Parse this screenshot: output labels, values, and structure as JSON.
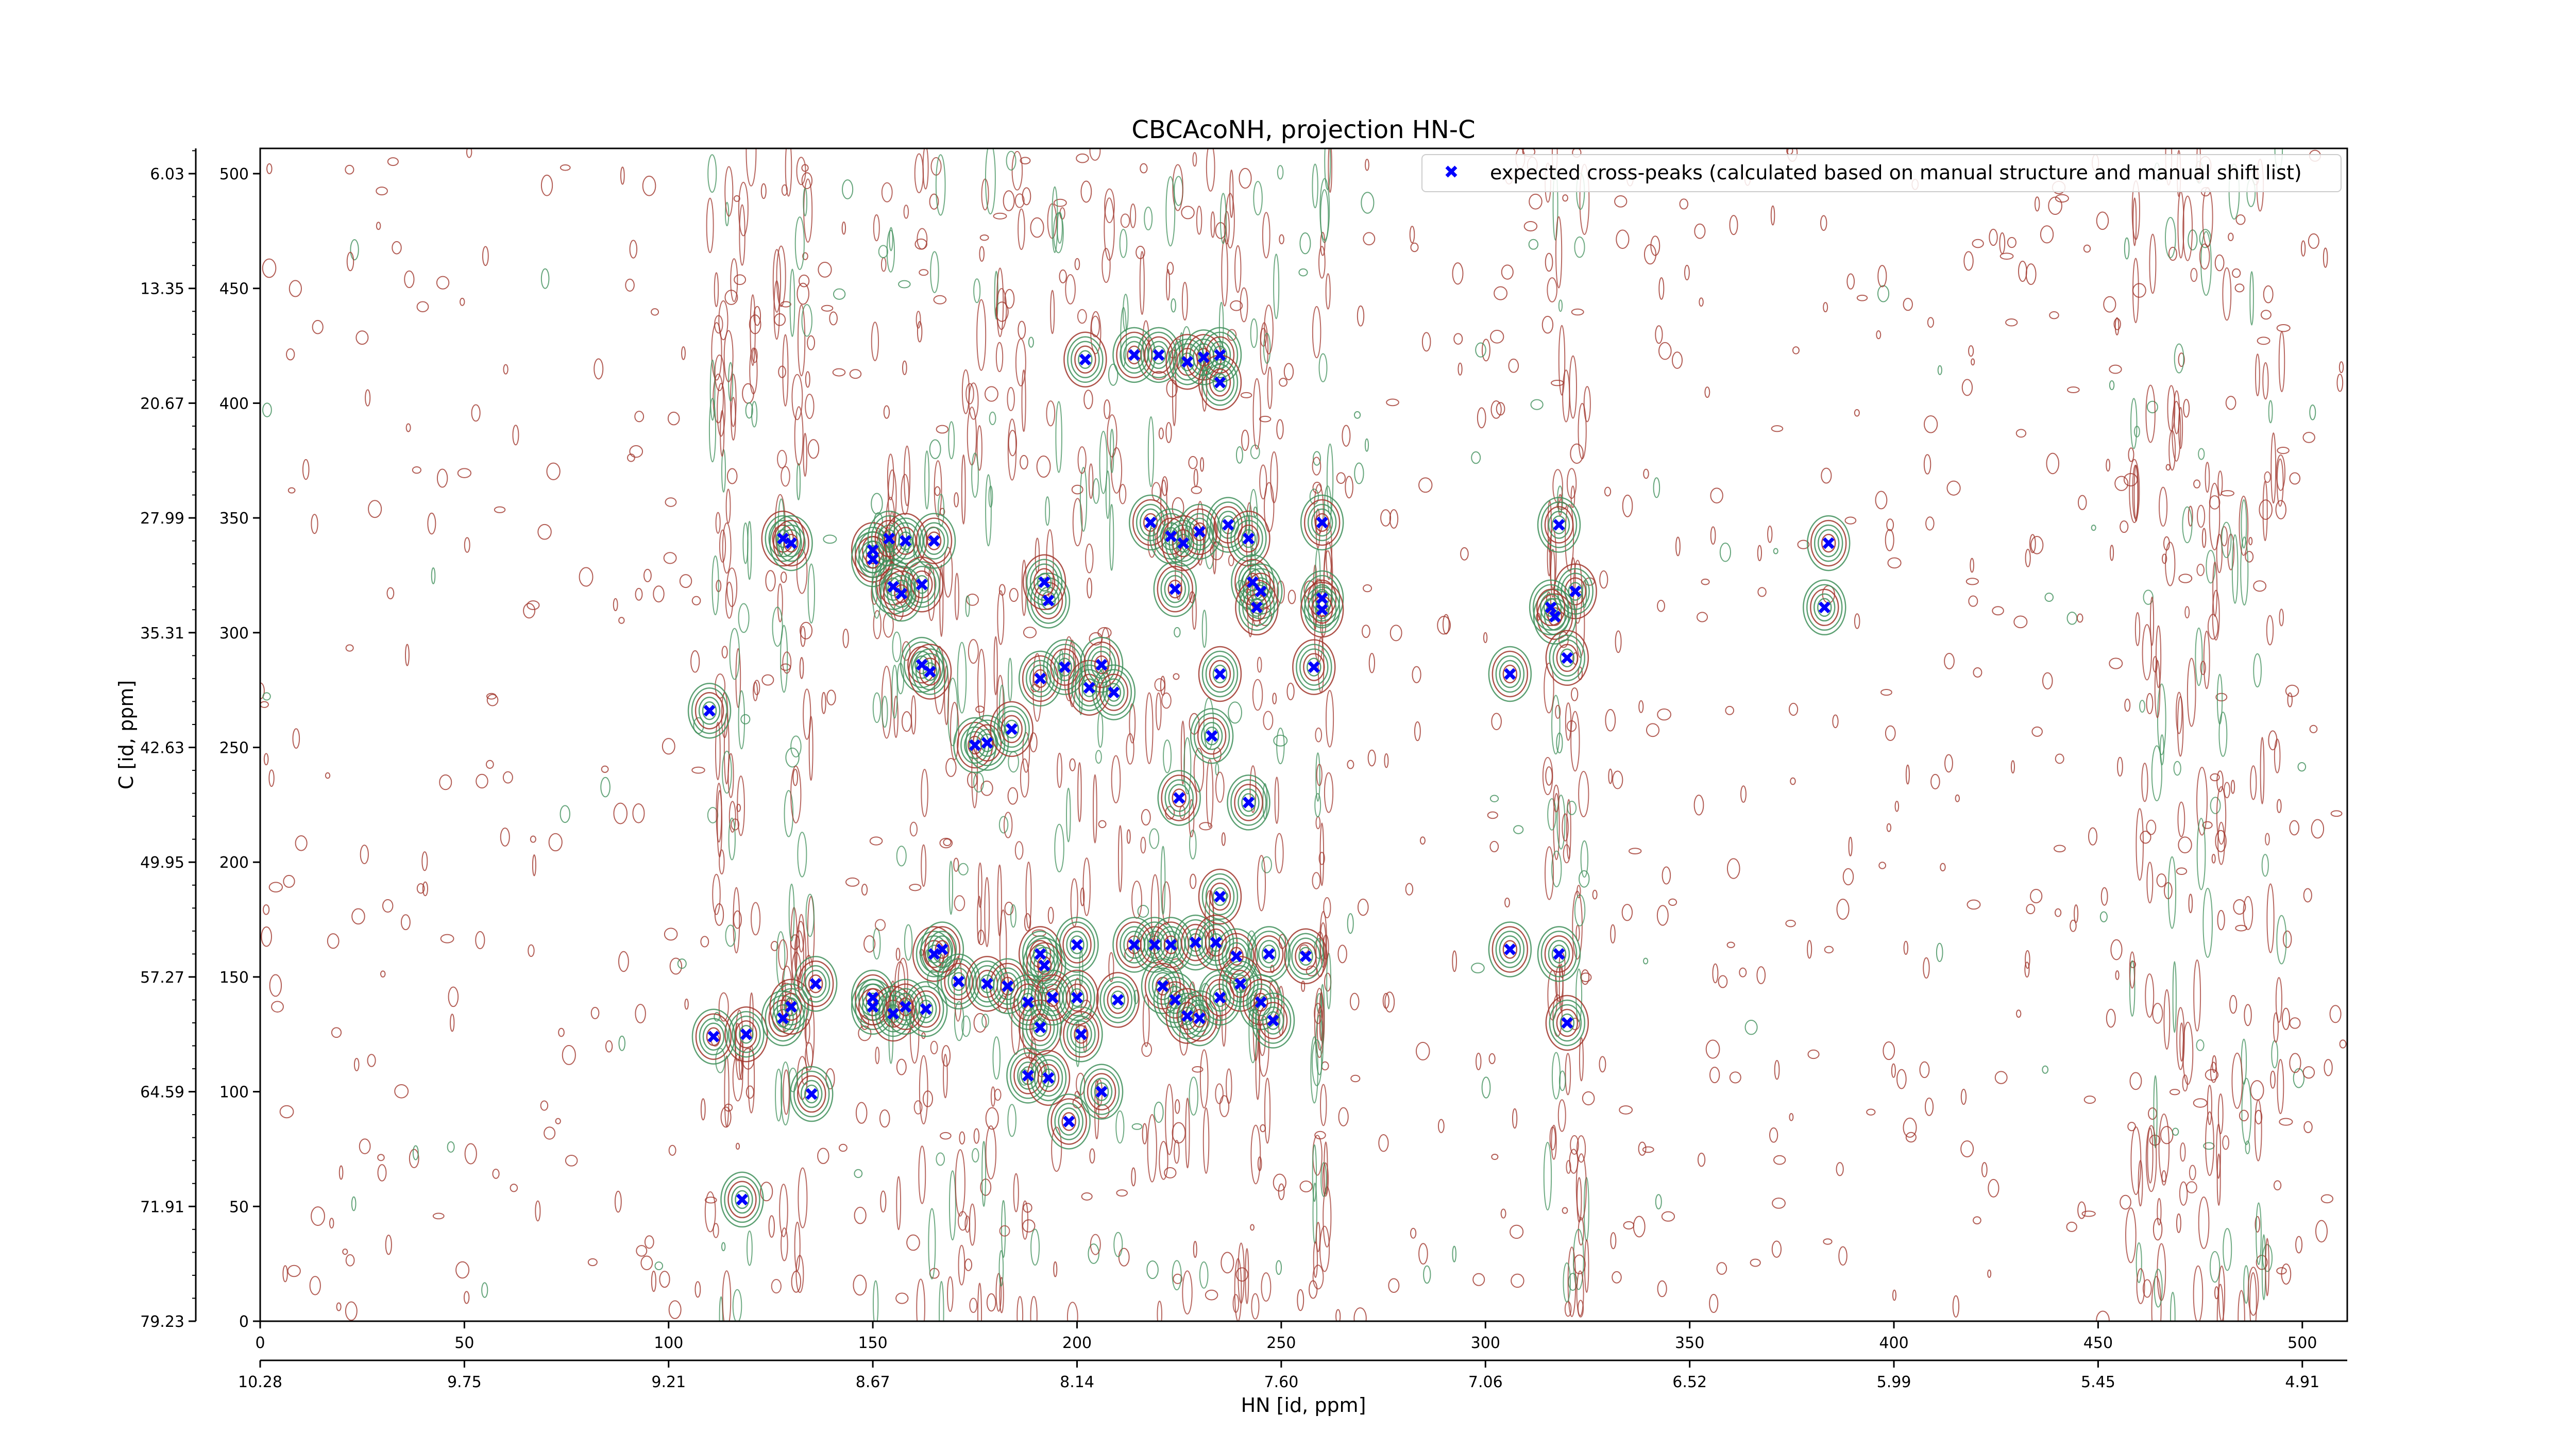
{
  "chart_data": {
    "type": "scatter",
    "title": "CBCAcoNH, projection HN-C",
    "xlabel": "HN [id, ppm]",
    "ylabel": "C [id, ppm]",
    "xlim": [
      0,
      511
    ],
    "ylim": [
      0,
      511
    ],
    "x_ticks": [
      0,
      50,
      100,
      150,
      200,
      250,
      300,
      350,
      400,
      450,
      500
    ],
    "y_ticks": [
      0,
      50,
      100,
      150,
      200,
      250,
      300,
      350,
      400,
      450,
      500
    ],
    "x_ppm_ticks": [
      {
        "x": 0,
        "label": "10.28"
      },
      {
        "x": 50,
        "label": "9.75"
      },
      {
        "x": 100,
        "label": "9.21"
      },
      {
        "x": 150,
        "label": "8.67"
      },
      {
        "x": 200,
        "label": "8.14"
      },
      {
        "x": 250,
        "label": "7.60"
      },
      {
        "x": 300,
        "label": "7.06"
      },
      {
        "x": 350,
        "label": "6.52"
      },
      {
        "x": 400,
        "label": "5.99"
      },
      {
        "x": 450,
        "label": "5.45"
      },
      {
        "x": 500,
        "label": "4.91"
      }
    ],
    "y_ppm_ticks": [
      {
        "y": 0,
        "label": "79.23"
      },
      {
        "y": 50,
        "label": "71.91"
      },
      {
        "y": 100,
        "label": "64.59"
      },
      {
        "y": 150,
        "label": "57.27"
      },
      {
        "y": 200,
        "label": "49.95"
      },
      {
        "y": 250,
        "label": "42.63"
      },
      {
        "y": 300,
        "label": "35.31"
      },
      {
        "y": 350,
        "label": "27.99"
      },
      {
        "y": 400,
        "label": "20.67"
      },
      {
        "y": 450,
        "label": "13.35"
      },
      {
        "y": 500,
        "label": "6.03"
      }
    ],
    "legend": {
      "position": "top-right",
      "label": "expected cross-peaks (calculated based on manual structure and manual shift list)"
    },
    "colors": {
      "peak_marker": "#0000ff",
      "positive_contour": "#a0362c",
      "negative_contour": "#3f8f5a",
      "background": "#ffffff"
    },
    "series": [
      {
        "name": "expected cross-peaks (calculated based on manual structure and manual shift list)",
        "points": [
          [
            110,
            266
          ],
          [
            119,
            125
          ],
          [
            111,
            124
          ],
          [
            118,
            53
          ],
          [
            128,
            341
          ],
          [
            130,
            339
          ],
          [
            128,
            132
          ],
          [
            130,
            137
          ],
          [
            136,
            147
          ],
          [
            135,
            99
          ],
          [
            150,
            336
          ],
          [
            150,
            332
          ],
          [
            154,
            341
          ],
          [
            158,
            340
          ],
          [
            165,
            340
          ],
          [
            155,
            320
          ],
          [
            162,
            321
          ],
          [
            157,
            317
          ],
          [
            162,
            286
          ],
          [
            164,
            283
          ],
          [
            175,
            251
          ],
          [
            178,
            252
          ],
          [
            184,
            258
          ],
          [
            150,
            141
          ],
          [
            150,
            137
          ],
          [
            155,
            134
          ],
          [
            158,
            137
          ],
          [
            163,
            136
          ],
          [
            165,
            160
          ],
          [
            167,
            162
          ],
          [
            171,
            148
          ],
          [
            178,
            147
          ],
          [
            183,
            146
          ],
          [
            193,
            314
          ],
          [
            192,
            322
          ],
          [
            191,
            280
          ],
          [
            197,
            285
          ],
          [
            203,
            276
          ],
          [
            206,
            286
          ],
          [
            209,
            274
          ],
          [
            191,
            160
          ],
          [
            192,
            155
          ],
          [
            188,
            139
          ],
          [
            191,
            128
          ],
          [
            194,
            141
          ],
          [
            200,
            164
          ],
          [
            200,
            141
          ],
          [
            201,
            125
          ],
          [
            188,
            107
          ],
          [
            193,
            106
          ],
          [
            198,
            87
          ],
          [
            206,
            100
          ],
          [
            210,
            140
          ],
          [
            214,
            164
          ],
          [
            219,
            164
          ],
          [
            202,
            419
          ],
          [
            214,
            421
          ],
          [
            220,
            421
          ],
          [
            227,
            418
          ],
          [
            231,
            420
          ],
          [
            235,
            421
          ],
          [
            235,
            409
          ],
          [
            218,
            348
          ],
          [
            223,
            342
          ],
          [
            226,
            339
          ],
          [
            230,
            344
          ],
          [
            237,
            347
          ],
          [
            242,
            341
          ],
          [
            224,
            319
          ],
          [
            233,
            255
          ],
          [
            235,
            282
          ],
          [
            243,
            322
          ],
          [
            245,
            318
          ],
          [
            244,
            311
          ],
          [
            225,
            228
          ],
          [
            242,
            226
          ],
          [
            235,
            185
          ],
          [
            223,
            164
          ],
          [
            229,
            165
          ],
          [
            234,
            165
          ],
          [
            239,
            159
          ],
          [
            247,
            160
          ],
          [
            256,
            159
          ],
          [
            221,
            146
          ],
          [
            224,
            140
          ],
          [
            227,
            133
          ],
          [
            230,
            132
          ],
          [
            235,
            141
          ],
          [
            240,
            147
          ],
          [
            245,
            139
          ],
          [
            248,
            131
          ],
          [
            258,
            285
          ],
          [
            260,
            348
          ],
          [
            260,
            315
          ],
          [
            260,
            310
          ],
          [
            306,
            282
          ],
          [
            318,
            347
          ],
          [
            322,
            318
          ],
          [
            317,
            307
          ],
          [
            316,
            311
          ],
          [
            320,
            289
          ],
          [
            306,
            162
          ],
          [
            318,
            160
          ],
          [
            320,
            130
          ],
          [
            384,
            339
          ],
          [
            383,
            311
          ]
        ]
      }
    ]
  }
}
